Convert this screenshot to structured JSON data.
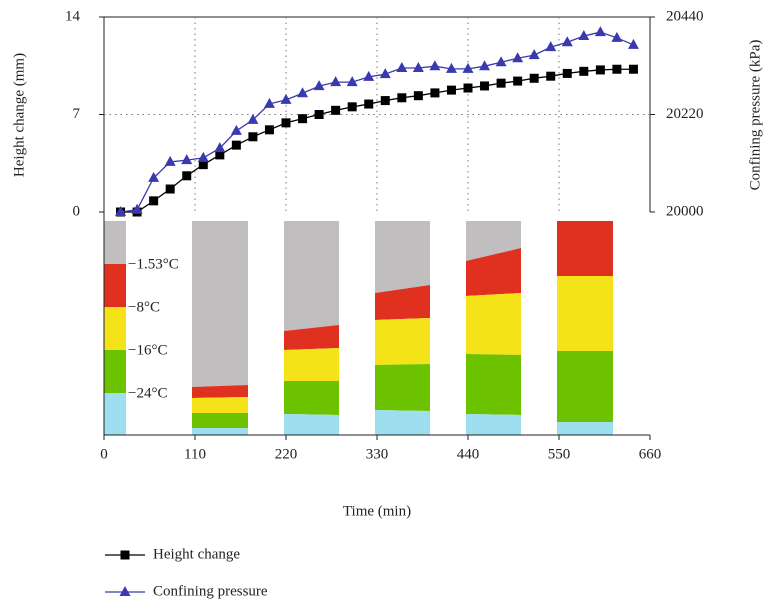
{
  "chart_data": {
    "type": "line",
    "x_label": "Time (min)",
    "y_label": "Height change (mm)",
    "y2_label": "Confining pressure (kPa)",
    "x": [
      20,
      40,
      60,
      80,
      100,
      120,
      140,
      160,
      180,
      200,
      220,
      240,
      260,
      280,
      300,
      320,
      340,
      360,
      380,
      400,
      420,
      440,
      460,
      480,
      500,
      520,
      540,
      560,
      580,
      600,
      620,
      640
    ],
    "series": [
      {
        "name": "Height change",
        "color": "#000000",
        "marker": "square",
        "values": [
          0,
          0,
          0.8,
          1.65,
          2.6,
          3.4,
          4.1,
          4.8,
          5.4,
          5.9,
          6.4,
          6.7,
          7.0,
          7.3,
          7.55,
          7.75,
          8.0,
          8.2,
          8.35,
          8.55,
          8.75,
          8.9,
          9.05,
          9.25,
          9.4,
          9.6,
          9.75,
          9.95,
          10.1,
          10.2,
          10.25,
          10.25
        ]
      },
      {
        "name": "Confining pressure",
        "color": "#3a3ab0",
        "marker": "triangle",
        "axis": "y2",
        "values": [
          20000,
          20005,
          20077,
          20113,
          20117,
          20122,
          20144,
          20183,
          20208,
          20244,
          20253,
          20268,
          20284,
          20293,
          20293,
          20305,
          20311,
          20325,
          20325,
          20329,
          20323,
          20323,
          20329,
          20338,
          20347,
          20354,
          20372,
          20383,
          20397,
          20406,
          20393,
          20377
        ]
      }
    ],
    "xlim": [
      0,
      660
    ],
    "xticks": [
      0,
      110,
      220,
      330,
      440,
      550,
      660
    ],
    "ylim": [
      0,
      14
    ],
    "yticks": [
      0,
      7,
      14
    ],
    "y2lim": [
      20000,
      20440
    ],
    "y2ticks": [
      20000,
      20220,
      20440
    ],
    "grid": true,
    "annotations": [
      "−1.53°C",
      "−8°C",
      "−16°C",
      "−24°C"
    ]
  }
}
